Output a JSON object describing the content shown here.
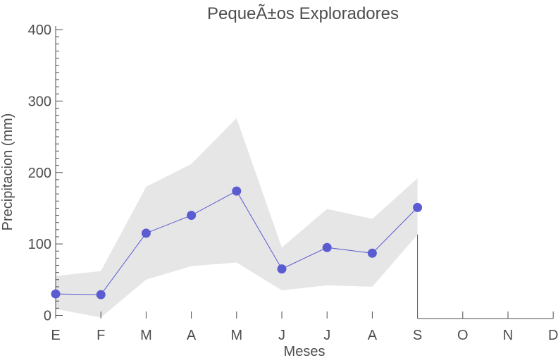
{
  "chart_data": {
    "type": "line",
    "title": "PequeÃ±os Exploradores",
    "xlabel": "Meses",
    "ylabel": "Precipitacion (mm)",
    "categories": [
      "E",
      "F",
      "M",
      "A",
      "M",
      "J",
      "J",
      "A",
      "S",
      "O",
      "N",
      "D"
    ],
    "ylim": [
      0,
      400
    ],
    "yticks": [
      0,
      100,
      200,
      300,
      400
    ],
    "grid": false,
    "series": [
      {
        "values": [
          30,
          29,
          115,
          140,
          174,
          65,
          95,
          87,
          151,
          null,
          null,
          null
        ],
        "color": "#5b5bd2"
      }
    ],
    "band": {
      "lower": [
        9,
        -3,
        50,
        69,
        74,
        35,
        42,
        40,
        113,
        null,
        null,
        null
      ],
      "upper": [
        55,
        62,
        180,
        212,
        276,
        95,
        149,
        135,
        192,
        null,
        null,
        null
      ],
      "color": "#e6e6e6"
    }
  }
}
